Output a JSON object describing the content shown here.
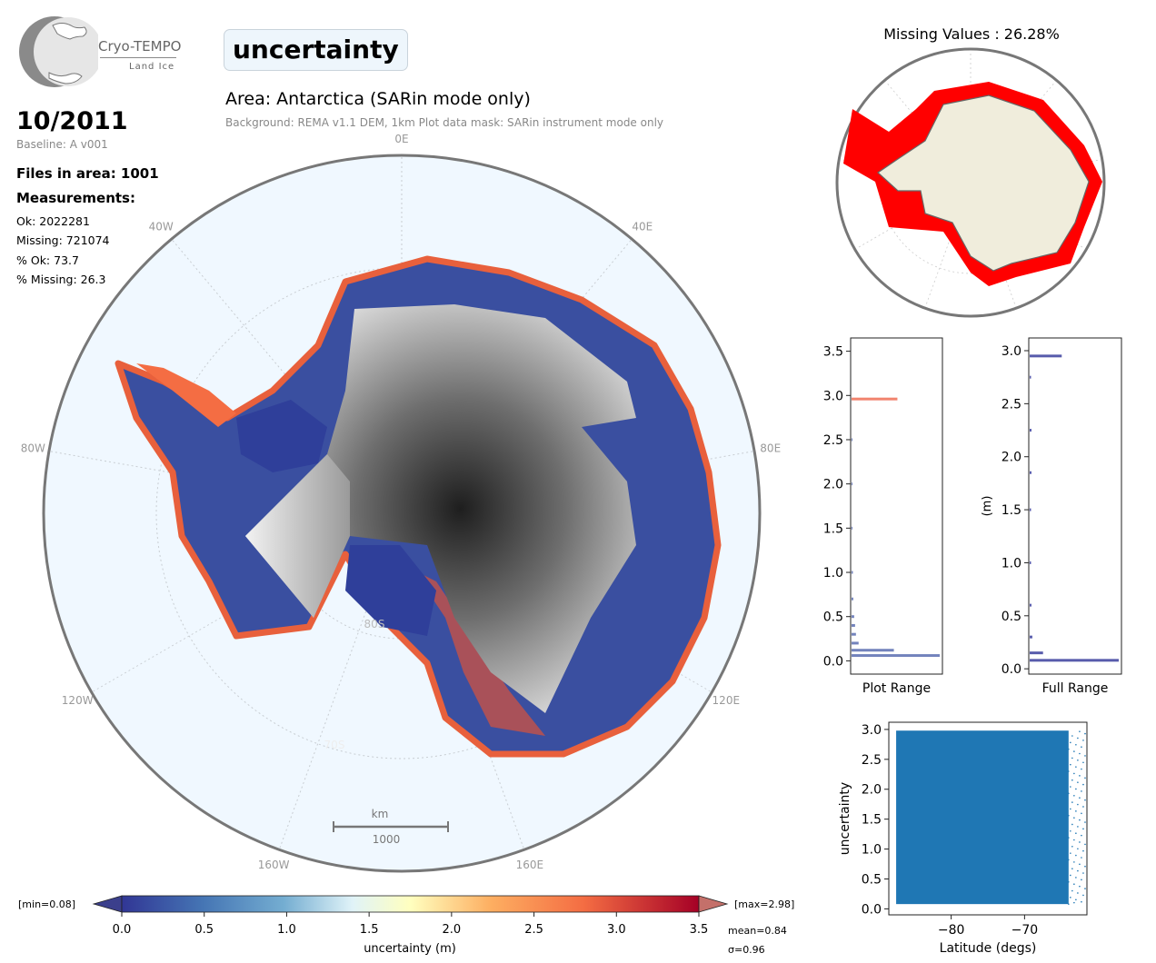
{
  "logo": {
    "name": "Cryo-TEMPO",
    "subtitle": "Land Ice"
  },
  "header": {
    "title": "uncertainty",
    "area": "Area: Antarctica (SARin mode only)",
    "background_line": "Background: REMA v1.1 DEM, 1km   Plot data mask: SARin instrument mode only"
  },
  "info": {
    "date": "10/2011",
    "baseline": "Baseline: A v001",
    "files": "Files in area: 1001",
    "measurements_heading": "Measurements:",
    "ok": "Ok: 2022281",
    "missing": "Missing: 721074",
    "pct_ok": "% Ok: 73.7",
    "pct_missing": "% Missing: 26.3"
  },
  "map": {
    "meridian_labels": [
      "0E",
      "40E",
      "80E",
      "120E",
      "160E",
      "160W",
      "120W",
      "80W",
      "40W"
    ],
    "latitude_labels": [
      "80S",
      "70S"
    ],
    "scalebar": {
      "unit": "km",
      "value": "1000"
    },
    "colors": {
      "ocean": "#f0f8ff",
      "ice_low": "#313695",
      "ice_high": "#f46d43"
    }
  },
  "colorbar": {
    "min_label": "[min=0.08]",
    "max_label": "[max=2.98]",
    "ticks": [
      "0.0",
      "0.5",
      "1.0",
      "1.5",
      "2.0",
      "2.5",
      "3.0",
      "3.5"
    ],
    "label": "uncertainty (m)",
    "mean": "mean=0.84",
    "sigma": "σ=0.96"
  },
  "missing_map": {
    "title": "Missing Values : 26.28%",
    "color": "#ff0000"
  },
  "chart_data": [
    {
      "type": "bar",
      "orientation": "horizontal",
      "xlabel": "Plot Range",
      "ylabel": "",
      "yticks": [
        "0.0",
        "0.5",
        "1.0",
        "1.5",
        "2.0",
        "2.5",
        "3.0",
        "3.5"
      ],
      "ylim": [
        -0.15,
        3.65
      ],
      "bins": [
        {
          "y": 0.06,
          "v": 1.0
        },
        {
          "y": 0.12,
          "v": 0.48
        },
        {
          "y": 0.2,
          "v": 0.08
        },
        {
          "y": 0.3,
          "v": 0.05
        },
        {
          "y": 0.4,
          "v": 0.04
        },
        {
          "y": 0.5,
          "v": 0.03
        },
        {
          "y": 0.7,
          "v": 0.02
        },
        {
          "y": 1.0,
          "v": 0.015
        },
        {
          "y": 1.5,
          "v": 0.01
        },
        {
          "y": 2.0,
          "v": 0.008
        },
        {
          "y": 2.5,
          "v": 0.008
        },
        {
          "y": 2.96,
          "v": 0.52
        }
      ]
    },
    {
      "type": "bar",
      "orientation": "horizontal",
      "xlabel": "Full Range",
      "ylabel": "(m)",
      "yticks": [
        "0.0",
        "0.5",
        "1.0",
        "1.5",
        "2.0",
        "2.5",
        "3.0"
      ],
      "ylim": [
        -0.05,
        3.12
      ],
      "bins": [
        {
          "y": 0.08,
          "v": 1.0
        },
        {
          "y": 0.15,
          "v": 0.15
        },
        {
          "y": 0.3,
          "v": 0.03
        },
        {
          "y": 0.6,
          "v": 0.02
        },
        {
          "y": 1.0,
          "v": 0.015
        },
        {
          "y": 1.5,
          "v": 0.015
        },
        {
          "y": 1.85,
          "v": 0.02
        },
        {
          "y": 2.25,
          "v": 0.02
        },
        {
          "y": 2.75,
          "v": 0.015
        },
        {
          "y": 2.95,
          "v": 0.36
        }
      ]
    },
    {
      "type": "scatter",
      "xlabel": "Latitude (degs)",
      "ylabel": "uncertainty",
      "xticks": [
        "−80",
        "−70"
      ],
      "yticks": [
        "0.0",
        "0.5",
        "1.0",
        "1.5",
        "2.0",
        "2.5",
        "3.0"
      ],
      "xlim": [
        -88.5,
        -61.5
      ],
      "ylim": [
        -0.1,
        3.12
      ],
      "x_range": [
        -87.5,
        -64
      ],
      "y_range": [
        0.08,
        2.98
      ],
      "color": "#1f77b4"
    }
  ]
}
